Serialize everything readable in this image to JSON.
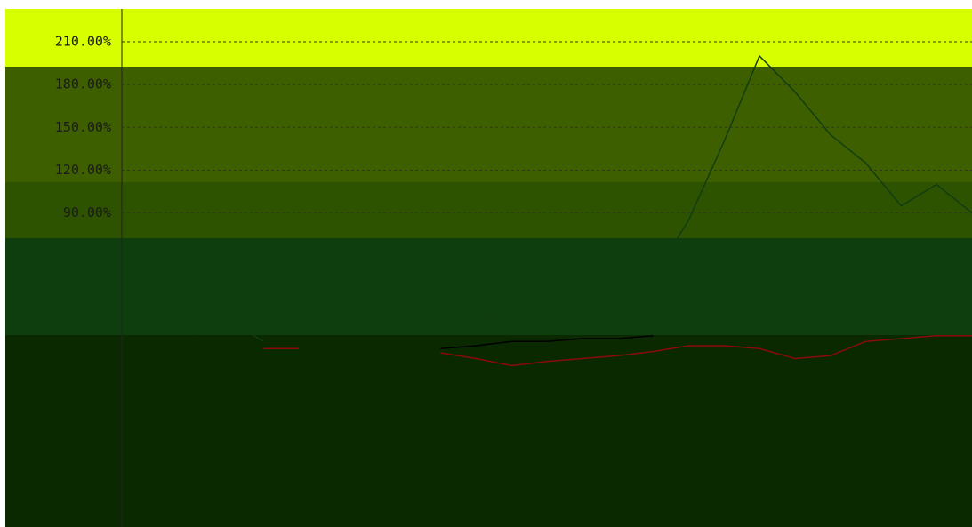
{
  "chart_data": {
    "type": "line",
    "categories": [
      null,
      null,
      null,
      null,
      null,
      null,
      null,
      null,
      null,
      null,
      null,
      null,
      null,
      null,
      null,
      null,
      null,
      null,
      null,
      null,
      null,
      null,
      null,
      null,
      null
    ],
    "series": [
      {
        "color": "#123d12",
        "values": [
          null,
          null,
          5,
          15,
          0,
          null,
          null,
          null,
          null,
          8,
          15,
          22,
          28,
          32,
          35,
          45,
          85,
          140,
          200,
          175,
          145,
          125,
          95,
          110,
          90
        ]
      },
      {
        "color": "#8b0a0a",
        "values": [
          null,
          null,
          null,
          null,
          -5,
          -5,
          null,
          null,
          null,
          -8,
          -12,
          -17,
          -14,
          -12,
          -10,
          -7,
          -3,
          -3,
          -5,
          -12,
          -10,
          0,
          2,
          4,
          4
        ]
      },
      {
        "color": "#000000",
        "values": [
          null,
          null,
          null,
          null,
          null,
          null,
          null,
          null,
          null,
          -5,
          -3,
          0,
          0,
          2,
          2,
          4,
          null,
          null,
          null,
          null,
          null,
          null,
          null,
          null,
          null
        ]
      }
    ],
    "ylim": [
      -130,
      233
    ],
    "yticks": [
      {
        "value": 90,
        "label": "90.00%"
      },
      {
        "value": 120,
        "label": "120.00%"
      },
      {
        "value": 150,
        "label": "150.00%"
      },
      {
        "value": 180,
        "label": "180.00%"
      },
      {
        "value": 210,
        "label": "210.00%"
      }
    ],
    "grid": true
  }
}
